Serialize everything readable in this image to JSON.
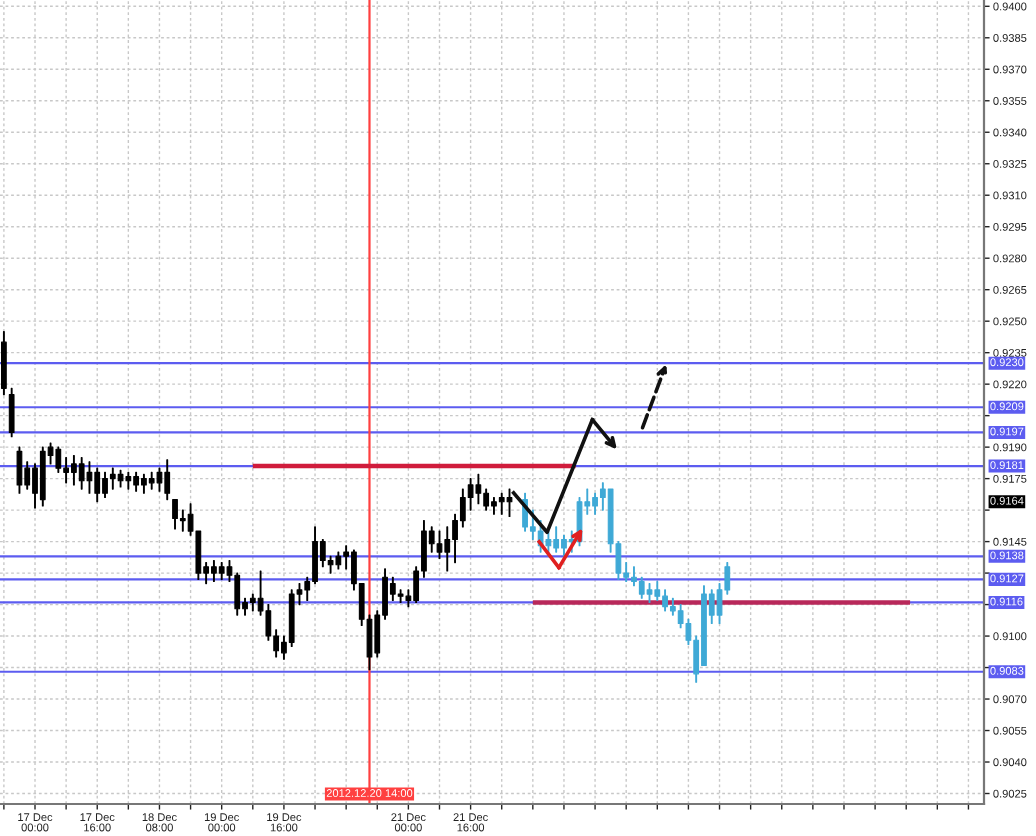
{
  "chart_data": {
    "type": "candlestick",
    "series": [
      {
        "color": "#000000",
        "x": [
          "2012-12-16T16:00",
          "2012-12-16T18:00",
          "2012-12-16T20:00",
          "2012-12-16T22:00",
          "2012-12-17T00:00",
          "2012-12-17T02:00",
          "2012-12-17T04:00",
          "2012-12-17T06:00",
          "2012-12-17T08:00",
          "2012-12-17T10:00",
          "2012-12-17T12:00",
          "2012-12-17T14:00",
          "2012-12-17T16:00",
          "2012-12-17T18:00",
          "2012-12-17T20:00",
          "2012-12-17T22:00",
          "2012-12-18T00:00",
          "2012-12-18T02:00",
          "2012-12-18T04:00",
          "2012-12-18T06:00",
          "2012-12-18T08:00",
          "2012-12-18T10:00",
          "2012-12-18T12:00",
          "2012-12-18T14:00",
          "2012-12-18T16:00",
          "2012-12-18T18:00",
          "2012-12-18T20:00",
          "2012-12-18T22:00",
          "2012-12-19T00:00",
          "2012-12-19T02:00",
          "2012-12-19T04:00",
          "2012-12-19T06:00",
          "2012-12-19T08:00",
          "2012-12-19T10:00",
          "2012-12-19T12:00",
          "2012-12-19T14:00",
          "2012-12-19T16:00",
          "2012-12-19T18:00",
          "2012-12-19T20:00",
          "2012-12-19T22:00",
          "2012-12-20T00:00",
          "2012-12-20T02:00",
          "2012-12-20T04:00",
          "2012-12-20T06:00",
          "2012-12-20T08:00",
          "2012-12-20T10:00",
          "2012-12-20T12:00",
          "2012-12-20T14:00",
          "2012-12-20T16:00",
          "2012-12-20T18:00",
          "2012-12-20T20:00",
          "2012-12-20T22:00",
          "2012-12-21T00:00",
          "2012-12-21T02:00",
          "2012-12-21T04:00",
          "2012-12-21T06:00",
          "2012-12-21T08:00",
          "2012-12-21T10:00",
          "2012-12-21T12:00",
          "2012-12-21T14:00",
          "2012-12-21T16:00",
          "2012-12-21T18:00",
          "2012-12-21T20:00",
          "2012-12-21T22:00",
          "2012-12-22T00:00",
          "2012-12-22T02:00"
        ],
        "ohlc": [
          [
            0.924,
            0.9245,
            0.9215,
            0.9218
          ],
          [
            0.9215,
            0.9218,
            0.9195,
            0.9197
          ],
          [
            0.9188,
            0.919,
            0.9168,
            0.9172
          ],
          [
            0.9172,
            0.9183,
            0.917,
            0.918
          ],
          [
            0.918,
            0.9182,
            0.9161,
            0.9168
          ],
          [
            0.9165,
            0.919,
            0.9162,
            0.9188
          ],
          [
            0.9186,
            0.9192,
            0.9182,
            0.919
          ],
          [
            0.9189,
            0.919,
            0.9178,
            0.918
          ],
          [
            0.918,
            0.9185,
            0.9173,
            0.9178
          ],
          [
            0.9178,
            0.9186,
            0.9172,
            0.9182
          ],
          [
            0.9182,
            0.9185,
            0.917,
            0.9174
          ],
          [
            0.9174,
            0.9183,
            0.9168,
            0.9178
          ],
          [
            0.9178,
            0.918,
            0.9164,
            0.9168
          ],
          [
            0.9168,
            0.9178,
            0.9166,
            0.9175
          ],
          [
            0.9175,
            0.918,
            0.917,
            0.9177
          ],
          [
            0.9177,
            0.9179,
            0.9171,
            0.9174
          ],
          [
            0.9174,
            0.9178,
            0.917,
            0.9176
          ],
          [
            0.9176,
            0.9178,
            0.9169,
            0.9172
          ],
          [
            0.9172,
            0.9177,
            0.9168,
            0.9175
          ],
          [
            0.9175,
            0.9178,
            0.917,
            0.9173
          ],
          [
            0.9173,
            0.918,
            0.9169,
            0.9178
          ],
          [
            0.9178,
            0.9184,
            0.9165,
            0.9168
          ],
          [
            0.9165,
            0.9165,
            0.9151,
            0.9156
          ],
          [
            0.9156,
            0.916,
            0.915,
            0.9155
          ],
          [
            0.9158,
            0.9163,
            0.9148,
            0.915
          ],
          [
            0.915,
            0.915,
            0.9127,
            0.913
          ],
          [
            0.913,
            0.9135,
            0.9125,
            0.9133
          ],
          [
            0.9133,
            0.9136,
            0.9126,
            0.913
          ],
          [
            0.913,
            0.9135,
            0.9127,
            0.9133
          ],
          [
            0.9133,
            0.9136,
            0.9126,
            0.9129
          ],
          [
            0.9129,
            0.913,
            0.911,
            0.9113
          ],
          [
            0.9113,
            0.9118,
            0.911,
            0.9116
          ],
          [
            0.9116,
            0.912,
            0.9112,
            0.9118
          ],
          [
            0.9118,
            0.9131,
            0.911,
            0.9112
          ],
          [
            0.9112,
            0.9115,
            0.9098,
            0.91
          ],
          [
            0.91,
            0.9103,
            0.909,
            0.9093
          ],
          [
            0.9092,
            0.91,
            0.9089,
            0.9097
          ],
          [
            0.9097,
            0.9122,
            0.9095,
            0.912
          ],
          [
            0.912,
            0.9125,
            0.9115,
            0.9122
          ],
          [
            0.9122,
            0.9128,
            0.9117,
            0.9126
          ],
          [
            0.9126,
            0.9152,
            0.9125,
            0.9145
          ],
          [
            0.9145,
            0.9146,
            0.9133,
            0.9136
          ],
          [
            0.9136,
            0.9138,
            0.913,
            0.9134
          ],
          [
            0.9134,
            0.914,
            0.9132,
            0.9138
          ],
          [
            0.9138,
            0.9143,
            0.9132,
            0.914
          ],
          [
            0.914,
            0.9141,
            0.9122,
            0.9125
          ],
          [
            0.9125,
            0.9125,
            0.9105,
            0.9108
          ],
          [
            0.9108,
            0.911,
            0.9084,
            0.909
          ],
          [
            0.9092,
            0.9112,
            0.909,
            0.911
          ],
          [
            0.911,
            0.9132,
            0.9108,
            0.9128
          ],
          [
            0.9125,
            0.9128,
            0.9117,
            0.912
          ],
          [
            0.912,
            0.9122,
            0.9116,
            0.9119
          ],
          [
            0.9119,
            0.9122,
            0.9114,
            0.9117
          ],
          [
            0.9117,
            0.9133,
            0.9116,
            0.9131
          ],
          [
            0.9131,
            0.9155,
            0.9128,
            0.915
          ],
          [
            0.915,
            0.9152,
            0.914,
            0.9144
          ],
          [
            0.9144,
            0.915,
            0.9137,
            0.914
          ],
          [
            0.914,
            0.9152,
            0.9131,
            0.9146
          ],
          [
            0.9146,
            0.9158,
            0.9135,
            0.9155
          ],
          [
            0.9155,
            0.917,
            0.9152,
            0.9166
          ],
          [
            0.9166,
            0.9175,
            0.916,
            0.9172
          ],
          [
            0.9172,
            0.9177,
            0.9163,
            0.9168
          ],
          [
            0.9168,
            0.917,
            0.916,
            0.9162
          ],
          [
            0.9162,
            0.9166,
            0.9158,
            0.9164
          ],
          [
            0.9164,
            0.9168,
            0.9158,
            0.9166
          ],
          [
            0.9166,
            0.917,
            0.9157,
            0.9164
          ]
        ]
      },
      {
        "color": "#3fa9d6",
        "x": [
          "2012-12-22T06:00",
          "2012-12-22T08:00",
          "2012-12-22T10:00",
          "2012-12-22T12:00",
          "2012-12-22T14:00",
          "2012-12-22T16:00",
          "2012-12-22T18:00",
          "2012-12-22T20:00",
          "2012-12-22T22:00",
          "2012-12-23T00:00",
          "2012-12-23T02:00",
          "2012-12-23T04:00",
          "2012-12-23T06:00",
          "2012-12-23T08:00",
          "2012-12-23T10:00",
          "2012-12-23T12:00",
          "2012-12-23T14:00",
          "2012-12-23T16:00",
          "2012-12-23T18:00",
          "2012-12-23T20:00",
          "2012-12-23T22:00",
          "2012-12-24T00:00",
          "2012-12-24T02:00",
          "2012-12-24T04:00",
          "2012-12-24T06:00",
          "2012-12-24T08:00",
          "2012-12-24T10:00"
        ],
        "ohlc": [
          [
            0.9165,
            0.9168,
            0.915,
            0.9152
          ],
          [
            0.9152,
            0.916,
            0.9146,
            0.915
          ],
          [
            0.915,
            0.9155,
            0.914,
            0.9143
          ],
          [
            0.9143,
            0.915,
            0.9138,
            0.9146
          ],
          [
            0.9146,
            0.9152,
            0.914,
            0.9142
          ],
          [
            0.9142,
            0.9148,
            0.9138,
            0.9146
          ],
          [
            0.9146,
            0.915,
            0.914,
            0.9145
          ],
          [
            0.9145,
            0.9166,
            0.9143,
            0.9164
          ],
          [
            0.9164,
            0.917,
            0.9158,
            0.9162
          ],
          [
            0.9162,
            0.9168,
            0.9158,
            0.9166
          ],
          [
            0.9166,
            0.9173,
            0.916,
            0.917
          ],
          [
            0.917,
            0.917,
            0.914,
            0.9144
          ],
          [
            0.9144,
            0.9145,
            0.9127,
            0.913
          ],
          [
            0.913,
            0.9135,
            0.9126,
            0.9128
          ],
          [
            0.9128,
            0.9133,
            0.9124,
            0.9126
          ],
          [
            0.9126,
            0.9128,
            0.9118,
            0.912
          ],
          [
            0.912,
            0.9125,
            0.9116,
            0.9122
          ],
          [
            0.9122,
            0.9126,
            0.9117,
            0.9119
          ],
          [
            0.9119,
            0.9122,
            0.9112,
            0.9114
          ],
          [
            0.9114,
            0.9118,
            0.911,
            0.9112
          ],
          [
            0.9112,
            0.9115,
            0.9104,
            0.9106
          ],
          [
            0.9106,
            0.9108,
            0.9096,
            0.9098
          ],
          [
            0.9098,
            0.91,
            0.9078,
            0.9082
          ],
          [
            0.9086,
            0.9124,
            0.9086,
            0.912
          ],
          [
            0.912,
            0.9122,
            0.9106,
            0.911
          ],
          [
            0.911,
            0.9125,
            0.9106,
            0.9122
          ],
          [
            0.9122,
            0.9135,
            0.912,
            0.9133
          ]
        ]
      },
      {
        "type": "line",
        "color": "#d01c3c",
        "x": [
          "2012-12-19T08:00",
          "2012-12-22T19:00"
        ],
        "values": [
          0.9181,
          0.9181
        ]
      },
      {
        "type": "line",
        "color": "#b8285a",
        "x": [
          "2012-12-22T08:00",
          "2012-12-26T09:00"
        ],
        "values": [
          0.9116,
          0.9116
        ]
      }
    ],
    "xlim": [
      "2012-12-16T15:00",
      "2012-12-27T04:00"
    ],
    "xticks": [
      {
        "value": "2012-12-16T16:00",
        "label": null
      },
      {
        "value": "2012-12-17T00:00",
        "label": "17 Dec 00:00"
      },
      {
        "value": "2012-12-17T08:00",
        "label": null
      },
      {
        "value": "2012-12-17T16:00",
        "label": "17 Dec 16:00"
      },
      {
        "value": "2012-12-18T00:00",
        "label": null
      },
      {
        "value": "2012-12-18T08:00",
        "label": "18 Dec 08:00"
      },
      {
        "value": "2012-12-18T16:00",
        "label": null
      },
      {
        "value": "2012-12-19T00:00",
        "label": "19 Dec 00:00"
      },
      {
        "value": "2012-12-19T08:00",
        "label": null
      },
      {
        "value": "2012-12-19T16:00",
        "label": "19 Dec 16:00"
      },
      {
        "value": "2012-12-20T00:00",
        "label": null
      },
      {
        "value": "2012-12-20T08:00",
        "label": null
      },
      {
        "value": "2012-12-20T16:00",
        "label": null
      },
      {
        "value": "2012-12-21T00:00",
        "label": "21 Dec 00:00"
      },
      {
        "value": "2012-12-21T08:00",
        "label": null
      },
      {
        "value": "2012-12-21T16:00",
        "label": "21 Dec 16:00"
      },
      {
        "value": "2012-12-22T00:00",
        "label": null
      },
      {
        "value": "2012-12-22T08:00",
        "label": null
      },
      {
        "value": "2012-12-22T16:00",
        "label": null
      },
      {
        "value": "2012-12-23T00:00",
        "label": null
      },
      {
        "value": "2012-12-23T08:00",
        "label": null
      },
      {
        "value": "2012-12-23T16:00",
        "label": null
      },
      {
        "value": "2012-12-24T00:00",
        "label": null
      },
      {
        "value": "2012-12-24T08:00",
        "label": null
      },
      {
        "value": "2012-12-24T16:00",
        "label": null
      },
      {
        "value": "2012-12-25T00:00",
        "label": null
      },
      {
        "value": "2012-12-25T08:00",
        "label": null
      },
      {
        "value": "2012-12-25T16:00",
        "label": null
      },
      {
        "value": "2012-12-26T00:00",
        "label": null
      },
      {
        "value": "2012-12-26T08:00",
        "label": null
      },
      {
        "value": "2012-12-26T16:00",
        "label": null
      },
      {
        "value": "2012-12-27T00:00",
        "label": null
      }
    ],
    "ylim": [
      0.902,
      0.9403
    ],
    "yticks": [
      {
        "value": 0.9025,
        "label": "0.9025"
      },
      {
        "value": 0.904,
        "label": "0.9040"
      },
      {
        "value": 0.9055,
        "label": "0.9055"
      },
      {
        "value": 0.907,
        "label": "0.9070"
      },
      {
        "value": 0.9085,
        "label": null
      },
      {
        "value": 0.91,
        "label": "0.9100"
      },
      {
        "value": 0.9115,
        "label": null
      },
      {
        "value": 0.913,
        "label": null
      },
      {
        "value": 0.9145,
        "label": "0.9145"
      },
      {
        "value": 0.916,
        "label": null
      },
      {
        "value": 0.9175,
        "label": "0.9175"
      },
      {
        "value": 0.919,
        "label": "0.9190"
      },
      {
        "value": 0.9205,
        "label": null
      },
      {
        "value": 0.922,
        "label": "0.9220"
      },
      {
        "value": 0.9235,
        "label": "0.9235"
      },
      {
        "value": 0.925,
        "label": "0.9250"
      },
      {
        "value": 0.9265,
        "label": "0.9265"
      },
      {
        "value": 0.928,
        "label": "0.9280"
      },
      {
        "value": 0.9295,
        "label": "0.9295"
      },
      {
        "value": 0.931,
        "label": "0.9310"
      },
      {
        "value": 0.9325,
        "label": "0.9325"
      },
      {
        "value": 0.934,
        "label": "0.9340"
      },
      {
        "value": 0.9355,
        "label": "0.9355"
      },
      {
        "value": 0.937,
        "label": "0.9370"
      },
      {
        "value": 0.9385,
        "label": "0.9385"
      },
      {
        "value": 0.94,
        "label": "0.9400"
      }
    ],
    "grid": true,
    "ref_lines": [
      {
        "axis": "y",
        "value": 0.923,
        "label": "0.9230",
        "color": "#5c5cf0"
      },
      {
        "axis": "y",
        "value": 0.9209,
        "label": "0.9209",
        "color": "#5c5cf0"
      },
      {
        "axis": "y",
        "value": 0.9197,
        "label": "0.9197",
        "color": "#5c5cf0"
      },
      {
        "axis": "y",
        "value": 0.9181,
        "label": "0.9181",
        "color": "#5c5cf0"
      },
      {
        "axis": "y",
        "value": 0.9138,
        "label": "0.9138",
        "color": "#5c5cf0"
      },
      {
        "axis": "y",
        "value": 0.9127,
        "label": "0.9127",
        "color": "#5c5cf0"
      },
      {
        "axis": "y",
        "value": 0.9116,
        "label": "0.9116",
        "color": "#5c5cf0"
      },
      {
        "axis": "y",
        "value": 0.9083,
        "label": "0.9083",
        "color": "#5c5cf0"
      },
      {
        "axis": "x",
        "value": "2012-12-20T14:00",
        "label": "2012.12.20 14:00",
        "color": "#ff4040"
      }
    ],
    "annotations": [
      {
        "text": "0.9164",
        "y": 0.9164
      }
    ]
  }
}
